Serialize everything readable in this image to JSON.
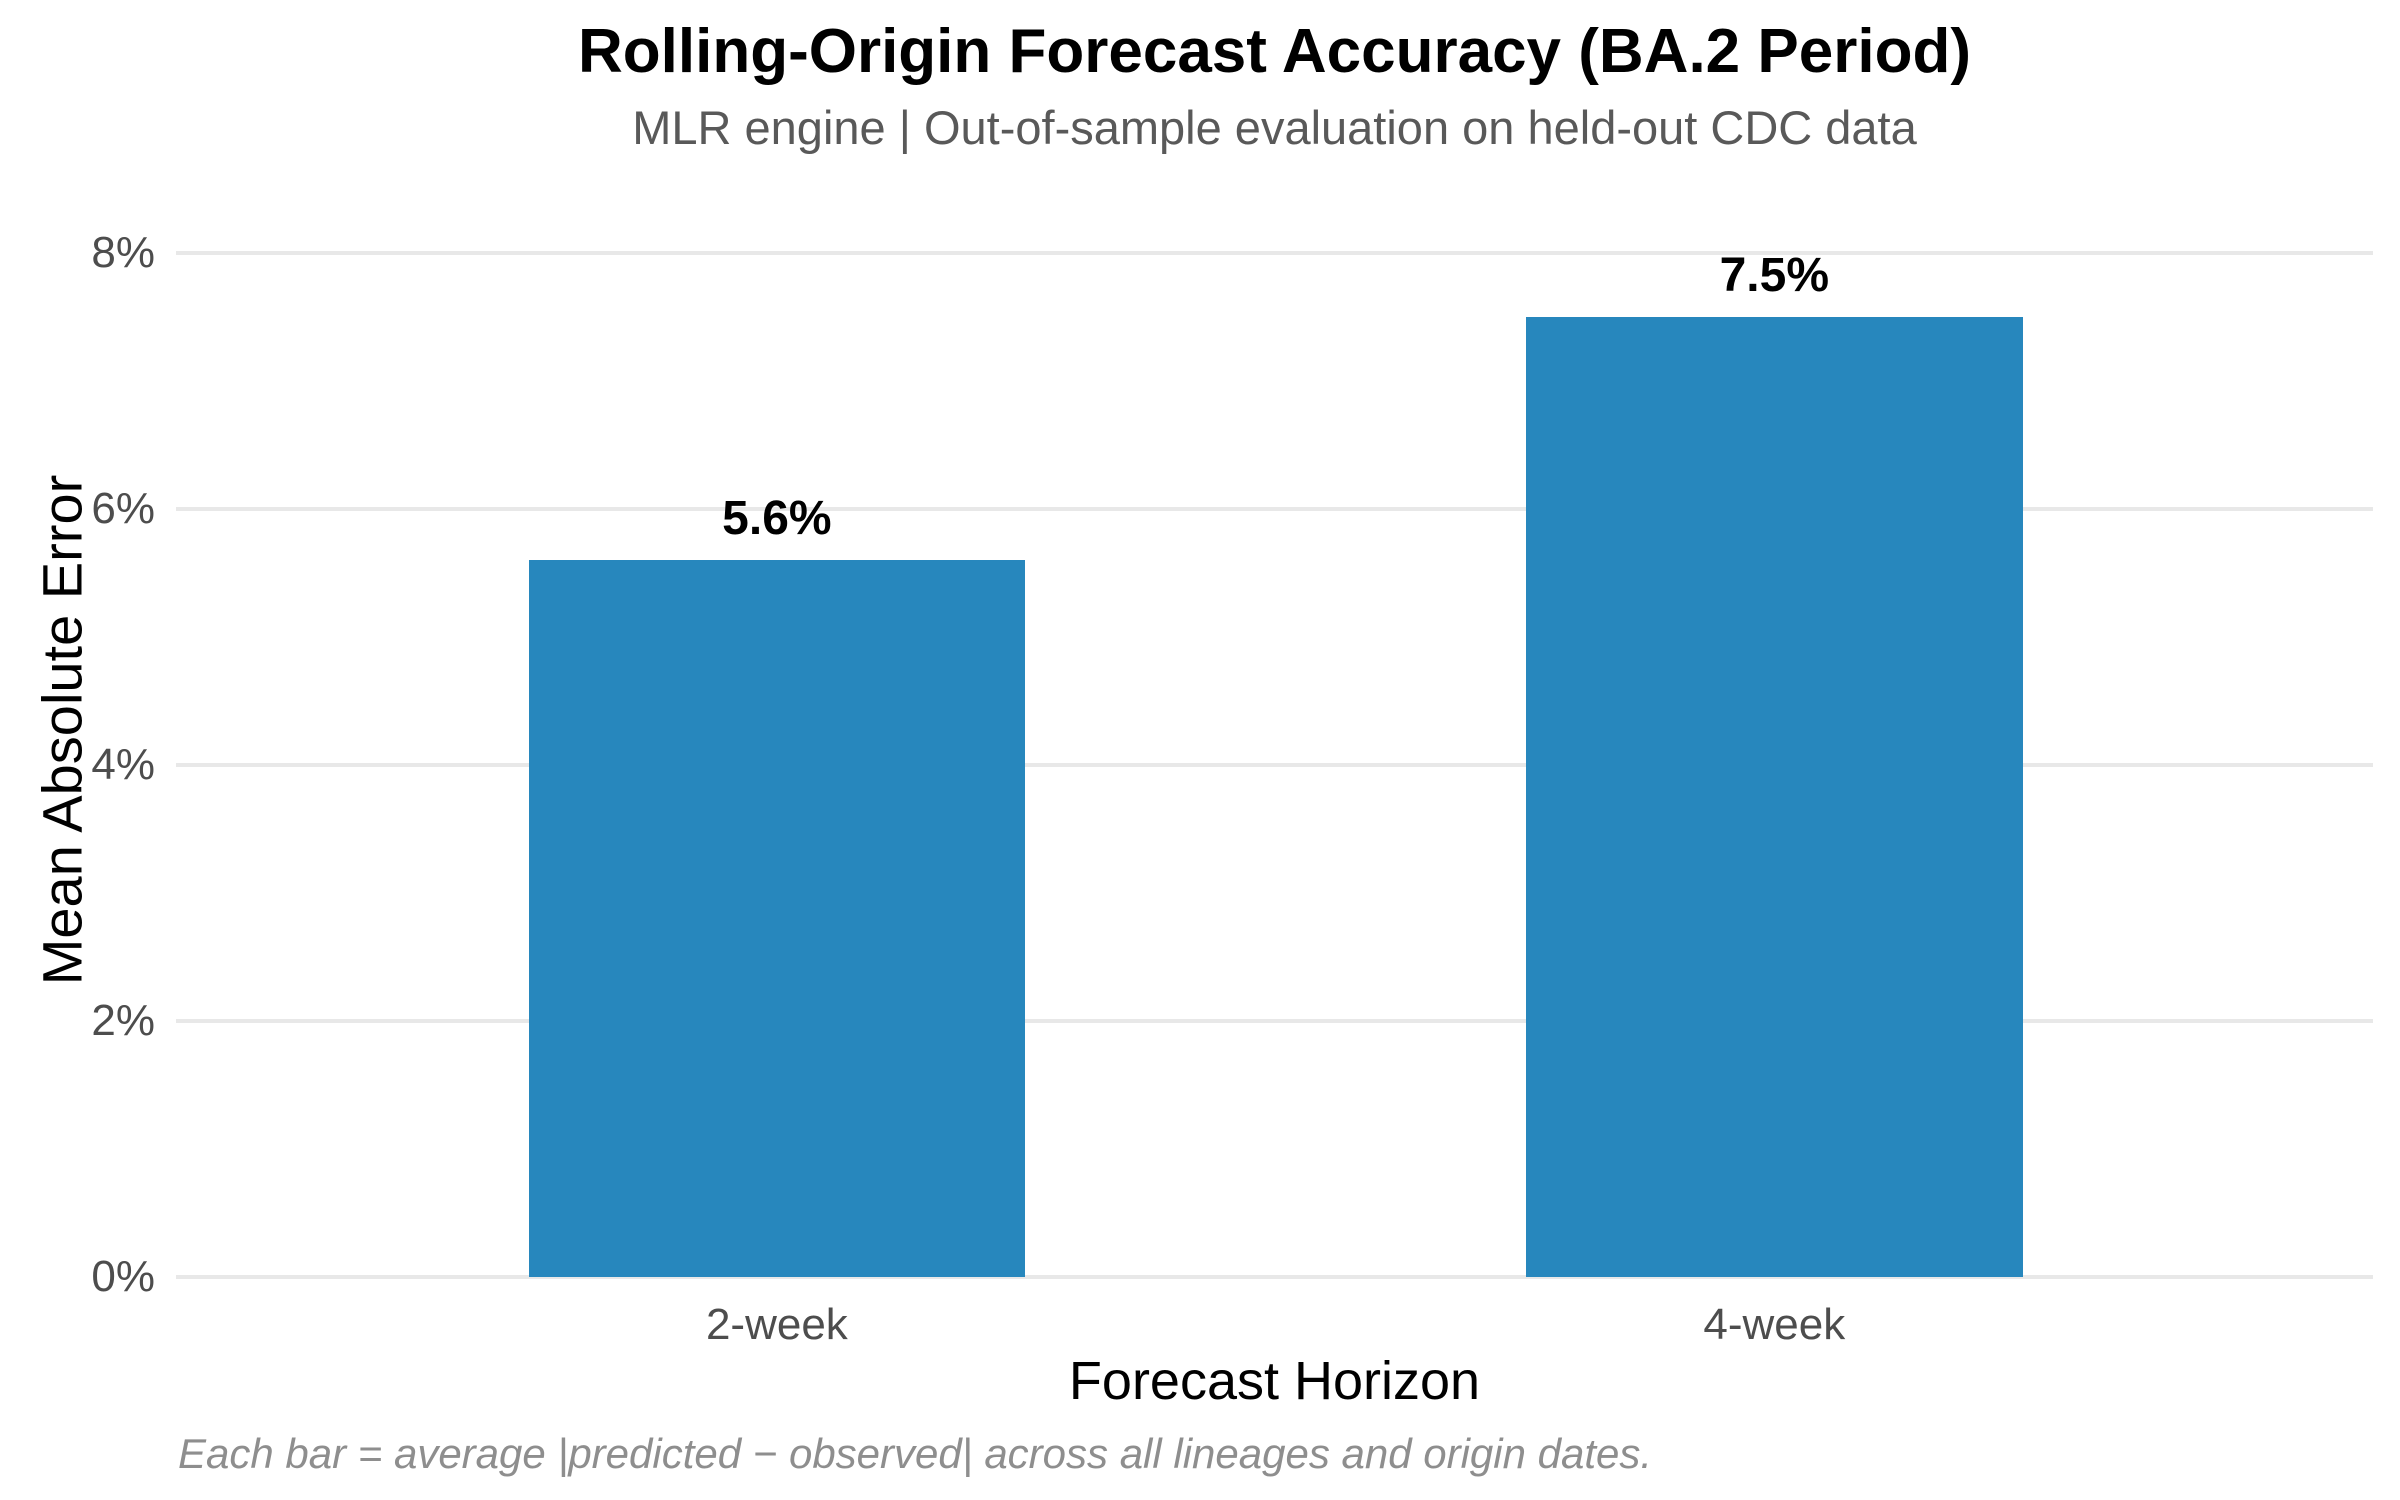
{
  "chart_data": {
    "type": "bar",
    "title": "Rolling-Origin Forecast Accuracy (BA.2 Period)",
    "subtitle": "MLR engine | Out-of-sample evaluation on held-out CDC data",
    "categories": [
      "2-week",
      "4-week"
    ],
    "values": [
      5.6,
      7.5
    ],
    "value_labels": [
      "5.6%",
      "7.5%"
    ],
    "xlabel": "Forecast Horizon",
    "ylabel": "Mean Absolute Error",
    "ylim": [
      0,
      8
    ],
    "yticks": [
      {
        "value": 0,
        "label": "0%"
      },
      {
        "value": 2,
        "label": "2%"
      },
      {
        "value": 4,
        "label": "4%"
      },
      {
        "value": 6,
        "label": "6%"
      },
      {
        "value": 8,
        "label": "8%"
      }
    ],
    "grid": "horizontal",
    "legend": "none",
    "caption": "Each bar = average |predicted − observed| across all lineages and origin dates."
  },
  "colors": {
    "bar": "#2787bd",
    "title": "#000000",
    "subtitle": "#595959",
    "tick_label": "#4d4d4d",
    "axis_title": "#000000",
    "gridline": "#e8e8e8",
    "caption": "#8e8e8e",
    "background": "#ffffff"
  }
}
